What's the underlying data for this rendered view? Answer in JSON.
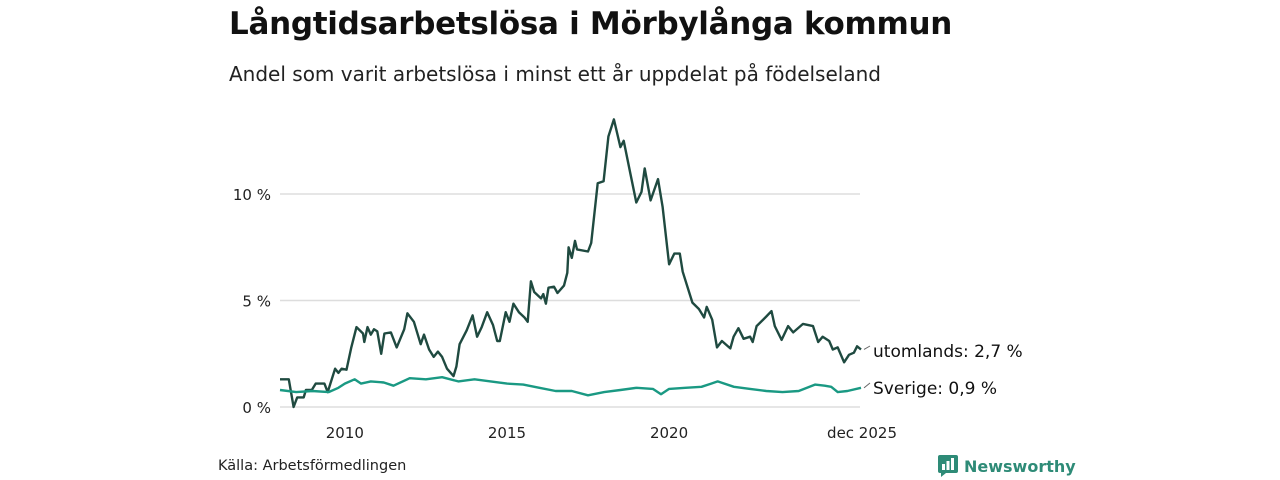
{
  "chart_data": {
    "type": "line",
    "title": "Långtidsarbetslösa i Mörbylånga kommun",
    "subtitle": "Andel som varit arbetslösa i minst ett år uppdelat på födelseland",
    "xlabel": "",
    "ylabel": "",
    "xlim": [
      2008.0,
      2025.92
    ],
    "ylim": [
      0,
      14
    ],
    "grid": true,
    "y_ticks": [
      {
        "value": 0,
        "label": "0 %"
      },
      {
        "value": 5,
        "label": "5 %"
      },
      {
        "value": 10,
        "label": "10 %"
      }
    ],
    "x_ticks": [
      {
        "value": 2010,
        "label": "2010"
      },
      {
        "value": 2015,
        "label": "2015"
      },
      {
        "value": 2020,
        "label": "2020"
      },
      {
        "value": 2025.92,
        "label": "dec 2025"
      }
    ],
    "series": [
      {
        "name": "utomlands",
        "end_label": "utomlands: 2,7 %",
        "color": "#1f4a40",
        "points": [
          [
            2008.0,
            1.3
          ],
          [
            2008.27,
            1.3
          ],
          [
            2008.42,
            0.0
          ],
          [
            2008.53,
            0.45
          ],
          [
            2008.73,
            0.45
          ],
          [
            2008.8,
            0.8
          ],
          [
            2008.98,
            0.8
          ],
          [
            2009.1,
            1.1
          ],
          [
            2009.37,
            1.1
          ],
          [
            2009.47,
            0.7
          ],
          [
            2009.7,
            1.8
          ],
          [
            2009.8,
            1.6
          ],
          [
            2009.9,
            1.8
          ],
          [
            2010.05,
            1.75
          ],
          [
            2010.2,
            2.8
          ],
          [
            2010.36,
            3.75
          ],
          [
            2010.56,
            3.45
          ],
          [
            2010.6,
            3.05
          ],
          [
            2010.7,
            3.75
          ],
          [
            2010.8,
            3.4
          ],
          [
            2010.9,
            3.65
          ],
          [
            2011.0,
            3.55
          ],
          [
            2011.12,
            2.5
          ],
          [
            2011.22,
            3.45
          ],
          [
            2011.42,
            3.5
          ],
          [
            2011.6,
            2.8
          ],
          [
            2011.83,
            3.65
          ],
          [
            2011.93,
            4.4
          ],
          [
            2012.13,
            4.0
          ],
          [
            2012.34,
            2.95
          ],
          [
            2012.44,
            3.4
          ],
          [
            2012.6,
            2.7
          ],
          [
            2012.74,
            2.35
          ],
          [
            2012.87,
            2.6
          ],
          [
            2013.0,
            2.35
          ],
          [
            2013.15,
            1.8
          ],
          [
            2013.35,
            1.45
          ],
          [
            2013.44,
            1.9
          ],
          [
            2013.54,
            2.95
          ],
          [
            2013.76,
            3.6
          ],
          [
            2013.94,
            4.3
          ],
          [
            2014.08,
            3.3
          ],
          [
            2014.22,
            3.75
          ],
          [
            2014.39,
            4.45
          ],
          [
            2014.57,
            3.85
          ],
          [
            2014.7,
            3.1
          ],
          [
            2014.78,
            3.1
          ],
          [
            2014.96,
            4.45
          ],
          [
            2015.08,
            4.0
          ],
          [
            2015.2,
            4.85
          ],
          [
            2015.37,
            4.45
          ],
          [
            2015.54,
            4.2
          ],
          [
            2015.64,
            4.0
          ],
          [
            2015.74,
            5.9
          ],
          [
            2015.84,
            5.4
          ],
          [
            2016.05,
            5.1
          ],
          [
            2016.12,
            5.3
          ],
          [
            2016.2,
            4.85
          ],
          [
            2016.28,
            5.6
          ],
          [
            2016.45,
            5.65
          ],
          [
            2016.56,
            5.35
          ],
          [
            2016.76,
            5.7
          ],
          [
            2016.86,
            6.3
          ],
          [
            2016.9,
            7.5
          ],
          [
            2017.0,
            7.0
          ],
          [
            2017.1,
            7.8
          ],
          [
            2017.16,
            7.4
          ],
          [
            2017.5,
            7.3
          ],
          [
            2017.6,
            7.7
          ],
          [
            2017.8,
            10.5
          ],
          [
            2017.98,
            10.6
          ],
          [
            2018.13,
            12.7
          ],
          [
            2018.3,
            13.5
          ],
          [
            2018.5,
            12.2
          ],
          [
            2018.6,
            12.5
          ],
          [
            2018.8,
            11.0
          ],
          [
            2018.99,
            9.6
          ],
          [
            2019.15,
            10.1
          ],
          [
            2019.25,
            11.2
          ],
          [
            2019.43,
            9.7
          ],
          [
            2019.66,
            10.7
          ],
          [
            2019.8,
            9.4
          ],
          [
            2020.0,
            6.7
          ],
          [
            2020.16,
            7.2
          ],
          [
            2020.33,
            7.2
          ],
          [
            2020.42,
            6.35
          ],
          [
            2020.72,
            4.9
          ],
          [
            2020.92,
            4.6
          ],
          [
            2021.08,
            4.2
          ],
          [
            2021.16,
            4.7
          ],
          [
            2021.33,
            4.1
          ],
          [
            2021.48,
            2.8
          ],
          [
            2021.63,
            3.1
          ],
          [
            2021.89,
            2.75
          ],
          [
            2021.99,
            3.3
          ],
          [
            2022.14,
            3.7
          ],
          [
            2022.3,
            3.2
          ],
          [
            2022.5,
            3.3
          ],
          [
            2022.58,
            3.05
          ],
          [
            2022.7,
            3.8
          ],
          [
            2023.0,
            4.25
          ],
          [
            2023.16,
            4.5
          ],
          [
            2023.26,
            3.8
          ],
          [
            2023.47,
            3.15
          ],
          [
            2023.67,
            3.8
          ],
          [
            2023.83,
            3.5
          ],
          [
            2024.13,
            3.9
          ],
          [
            2024.44,
            3.8
          ],
          [
            2024.6,
            3.05
          ],
          [
            2024.74,
            3.3
          ],
          [
            2024.94,
            3.1
          ],
          [
            2025.05,
            2.7
          ],
          [
            2025.2,
            2.8
          ],
          [
            2025.4,
            2.1
          ],
          [
            2025.55,
            2.45
          ],
          [
            2025.7,
            2.55
          ],
          [
            2025.8,
            2.85
          ],
          [
            2025.92,
            2.7
          ]
        ]
      },
      {
        "name": "Sverige",
        "end_label": "Sverige: 0,9 %",
        "color": "#1a9983",
        "points": [
          [
            2008.0,
            0.8
          ],
          [
            2008.5,
            0.7
          ],
          [
            2009.0,
            0.75
          ],
          [
            2009.5,
            0.7
          ],
          [
            2009.8,
            0.9
          ],
          [
            2010.0,
            1.1
          ],
          [
            2010.3,
            1.3
          ],
          [
            2010.5,
            1.1
          ],
          [
            2010.8,
            1.2
          ],
          [
            2011.2,
            1.15
          ],
          [
            2011.5,
            1.0
          ],
          [
            2012.0,
            1.35
          ],
          [
            2012.5,
            1.3
          ],
          [
            2013.0,
            1.4
          ],
          [
            2013.5,
            1.2
          ],
          [
            2014.0,
            1.3
          ],
          [
            2014.5,
            1.2
          ],
          [
            2015.0,
            1.1
          ],
          [
            2015.5,
            1.05
          ],
          [
            2016.0,
            0.9
          ],
          [
            2016.5,
            0.75
          ],
          [
            2017.0,
            0.75
          ],
          [
            2017.5,
            0.55
          ],
          [
            2018.0,
            0.7
          ],
          [
            2018.5,
            0.8
          ],
          [
            2019.0,
            0.9
          ],
          [
            2019.5,
            0.85
          ],
          [
            2019.75,
            0.6
          ],
          [
            2020.0,
            0.85
          ],
          [
            2020.5,
            0.9
          ],
          [
            2021.0,
            0.95
          ],
          [
            2021.3,
            1.1
          ],
          [
            2021.5,
            1.2
          ],
          [
            2022.0,
            0.95
          ],
          [
            2022.5,
            0.85
          ],
          [
            2023.0,
            0.75
          ],
          [
            2023.5,
            0.7
          ],
          [
            2024.0,
            0.75
          ],
          [
            2024.5,
            1.05
          ],
          [
            2024.8,
            1.0
          ],
          [
            2025.0,
            0.95
          ],
          [
            2025.2,
            0.7
          ],
          [
            2025.5,
            0.75
          ],
          [
            2025.92,
            0.9
          ]
        ]
      }
    ]
  },
  "source": "Källa: Arbetsförmedlingen",
  "brand": "Newsworthy"
}
